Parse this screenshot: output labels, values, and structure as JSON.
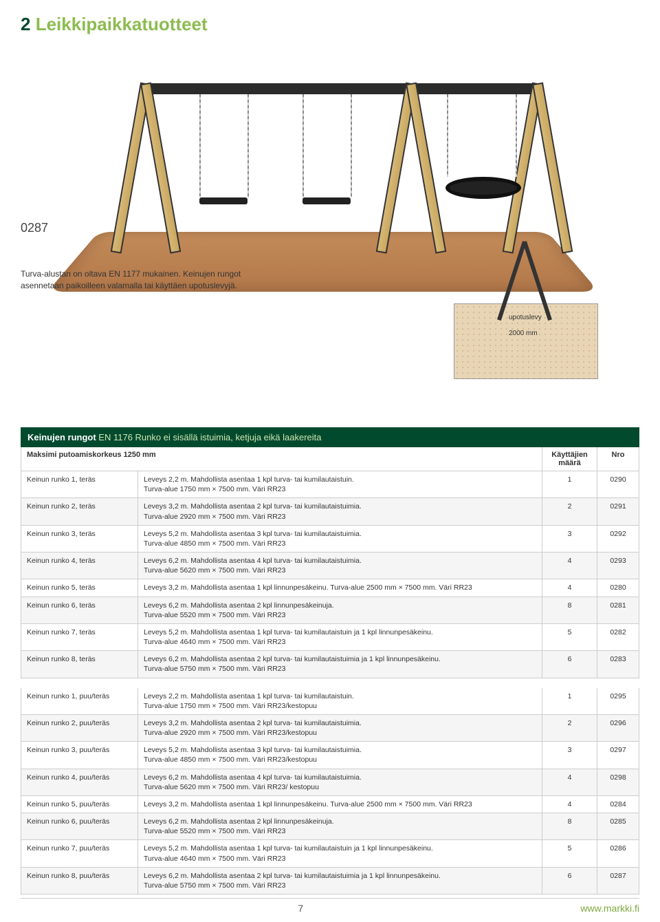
{
  "header": {
    "section_num": "2",
    "section_title": "Leikkipaikkatuotteet"
  },
  "product_code": "0287",
  "caption_line1": "Turva-alustan on oltava EN 1177 mukainen. Keinujen rungot",
  "caption_line2": "asennetaan paikoilleen valamalla tai käyttäen upotuslevyjä.",
  "diagram": {
    "label_upotuslevy": "upotuslevy",
    "label_depth": "2000 mm"
  },
  "table1": {
    "title_bold": "Keinujen rungot",
    "title_light": "EN 1176 Runko ei sisällä istuimia, ketjuja eikä laakereita",
    "subhead_left": "Maksimi putoamiskorkeus 1250 mm",
    "col_users": "Käyttäjien määrä",
    "col_nro": "Nro",
    "rows": [
      {
        "a": "Keinun runko 1, teräs",
        "b": "Leveys 2,2 m. Mahdollista asentaa 1 kpl turva- tai kumilautaistuin.\nTurva-alue 1750 mm × 7500 mm. Väri RR23",
        "c": "1",
        "d": "0290"
      },
      {
        "a": "Keinun runko 2, teräs",
        "b": "Leveys 3,2 m. Mahdollista asentaa 2 kpl turva- tai kumilautaistuimia.\nTurva-alue 2920 mm × 7500 mm. Väri RR23",
        "c": "2",
        "d": "0291"
      },
      {
        "a": "Keinun runko 3, teräs",
        "b": "Leveys 5,2 m. Mahdollista asentaa 3 kpl turva- tai kumilautaistuimia.\nTurva-alue 4850 mm × 7500 mm. Väri RR23",
        "c": "3",
        "d": "0292"
      },
      {
        "a": "Keinun runko 4, teräs",
        "b": "Leveys 6,2 m. Mahdollista asentaa 4 kpl turva- tai kumilautaistuimia.\nTurva-alue 5620 mm × 7500 mm. Väri RR23",
        "c": "4",
        "d": "0293"
      },
      {
        "a": "Keinun runko 5, teräs",
        "b": "Leveys 3,2 m. Mahdollista asentaa 1 kpl linnunpesäkeinu. Turva-alue 2500 mm × 7500 mm. Väri RR23",
        "c": "4",
        "d": "0280"
      },
      {
        "a": "Keinun runko 6, teräs",
        "b": "Leveys 6,2 m. Mahdollista asentaa 2 kpl linnunpesäkeinuja.\nTurva-alue 5520 mm × 7500 mm. Väri RR23",
        "c": "8",
        "d": "0281"
      },
      {
        "a": "Keinun runko 7, teräs",
        "b": "Leveys 5,2 m. Mahdollista asentaa 1 kpl turva- tai kumilautaistuin ja 1 kpl linnunpesäkeinu.\nTurva-alue 4640 mm × 7500 mm. Väri RR23",
        "c": "5",
        "d": "0282"
      },
      {
        "a": "Keinun runko 8, teräs",
        "b": "Leveys 6,2 m. Mahdollista asentaa 2 kpl turva- tai kumilautaistuimia ja 1 kpl linnunpesäkeinu.\nTurva-alue 5750 mm × 7500 mm. Väri RR23",
        "c": "6",
        "d": "0283"
      }
    ]
  },
  "table2": {
    "rows": [
      {
        "a": "Keinun runko 1, puu/teräs",
        "b": "Leveys 2,2 m. Mahdollista asentaa 1 kpl turva- tai kumilautaistuin.\nTurva-alue 1750 mm × 7500 mm. Väri RR23/kestopuu",
        "c": "1",
        "d": "0295"
      },
      {
        "a": "Keinun runko 2, puu/teräs",
        "b": "Leveys 3,2 m. Mahdollista asentaa 2 kpl turva- tai kumilautaistuimia.\nTurva-alue 2920 mm × 7500 mm. Väri RR23/kestopuu",
        "c": "2",
        "d": "0296"
      },
      {
        "a": "Keinun runko 3, puu/teräs",
        "b": "Leveys 5,2 m. Mahdollista asentaa 3 kpl turva- tai kumilautaistuimia.\nTurva-alue 4850 mm × 7500 mm. Väri RR23/kestopuu",
        "c": "3",
        "d": "0297"
      },
      {
        "a": "Keinun runko 4, puu/teräs",
        "b": "Leveys 6,2 m. Mahdollista asentaa 4 kpl turva- tai kumilautaistuimia.\nTurva-alue 5620 mm × 7500 mm. Väri RR23/ kestopuu",
        "c": "4",
        "d": "0298"
      },
      {
        "a": "Keinun runko 5, puu/teräs",
        "b": "Leveys 3,2 m. Mahdollista asentaa 1 kpl linnunpesäkeinu. Turva-alue 2500 mm × 7500 mm. Väri RR23",
        "c": "4",
        "d": "0284"
      },
      {
        "a": "Keinun runko 6, puu/teräs",
        "b": "Leveys 6,2 m. Mahdollista asentaa 2 kpl linnunpesäkeinuja.\nTurva-alue 5520 mm × 7500 mm. Väri RR23",
        "c": "8",
        "d": "0285"
      },
      {
        "a": "Keinun runko 7, puu/teräs",
        "b": "Leveys 5,2 m. Mahdollista asentaa 1 kpl turva- tai kumilautaistuin ja 1 kpl linnunpesäkeinu.\nTurva-alue 4640 mm × 7500 mm. Väri RR23",
        "c": "5",
        "d": "0286"
      },
      {
        "a": "Keinun runko 8, puu/teräs",
        "b": "Leveys 6,2 m. Mahdollista asentaa 2 kpl turva- tai kumilautaistuimia ja 1 kpl linnunpesäkeinu.\nTurva-alue 5750 mm × 7500 mm. Väri RR23",
        "c": "6",
        "d": "0287"
      }
    ]
  },
  "footer": {
    "page": "7",
    "site": "www.markki.fi"
  },
  "colors": {
    "brand_dark": "#024a2e",
    "brand_light": "#8dbb50",
    "row_alt": "#f5f5f5",
    "border": "#cccccc"
  }
}
